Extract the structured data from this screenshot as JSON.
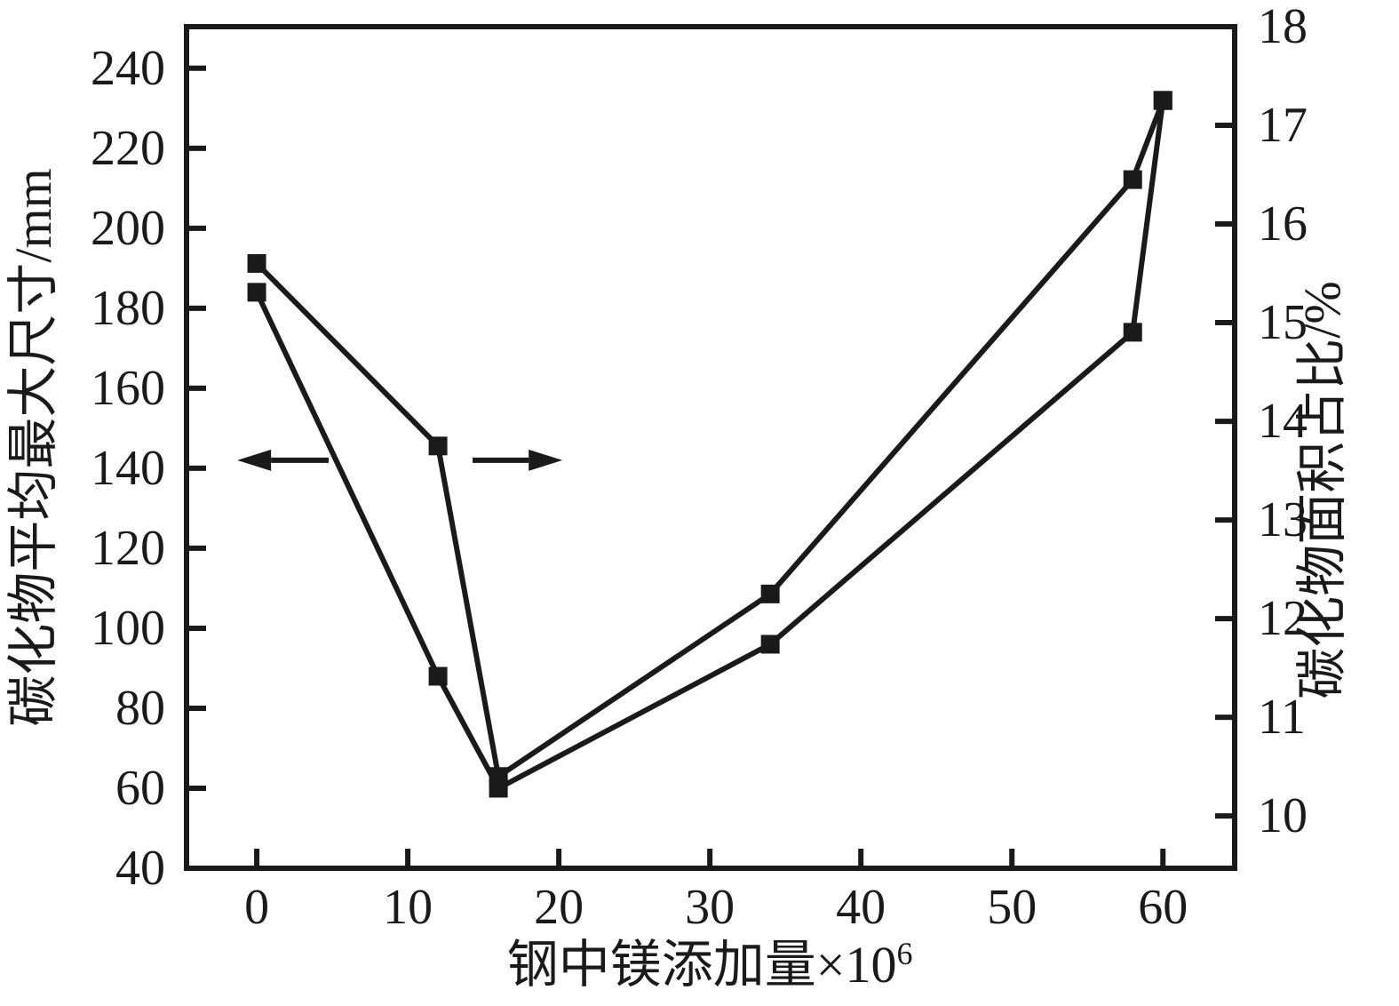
{
  "page": {
    "background": "#ffffff",
    "ink_color": "#1a1a1a"
  },
  "chart_data": {
    "type": "line",
    "title": "",
    "grid": false,
    "legend": "none",
    "x_axis": {
      "label": "钢中镁添加量×10⁶",
      "label_base": "钢中镁添加量×10",
      "label_superscript": "6",
      "ticks": [
        0,
        10,
        20,
        30,
        40,
        50,
        60
      ],
      "range": [
        -4.65,
        64.75
      ]
    },
    "y_axis_left": {
      "label": "碳化物平均最大尺寸/mm",
      "ticks": [
        240,
        220,
        200,
        180,
        160,
        140,
        120,
        100,
        80,
        60,
        40
      ],
      "range": [
        40,
        250.4
      ]
    },
    "y_axis_right": {
      "label": "碳化物面积占比/%",
      "ticks": [
        18,
        17,
        16,
        15,
        14,
        13,
        12,
        11,
        10
      ],
      "range": [
        9.47,
        18
      ]
    },
    "series": [
      {
        "name": "碳化物平均最大尺寸",
        "axis": "left",
        "marker": "square",
        "color": "#1a1a1a",
        "points": [
          {
            "x": 0,
            "y": 184
          },
          {
            "x": 12,
            "y": 88
          },
          {
            "x": 16,
            "y": 60
          },
          {
            "x": 34,
            "y": 96
          },
          {
            "x": 58,
            "y": 174
          },
          {
            "x": 60,
            "y": 232
          }
        ]
      },
      {
        "name": "碳化物面积占比",
        "axis": "right",
        "marker": "square",
        "color": "#1a1a1a",
        "points": [
          {
            "x": 0,
            "y": 15.6
          },
          {
            "x": 12,
            "y": 13.75
          },
          {
            "x": 16,
            "y": 10.4
          },
          {
            "x": 34,
            "y": 12.25
          },
          {
            "x": 58,
            "y": 16.45
          },
          {
            "x": 60,
            "y": 17.25
          }
        ]
      }
    ],
    "annotations": [
      {
        "type": "arrow",
        "points_to": "left-axis",
        "y_on_left_axis": 142,
        "x_tail": 4.76,
        "x_tip": -1.29
      },
      {
        "type": "arrow",
        "points_to": "right-axis",
        "y_on_left_axis": 142,
        "x_tail": 14.29,
        "x_tip": 20.24
      }
    ]
  }
}
